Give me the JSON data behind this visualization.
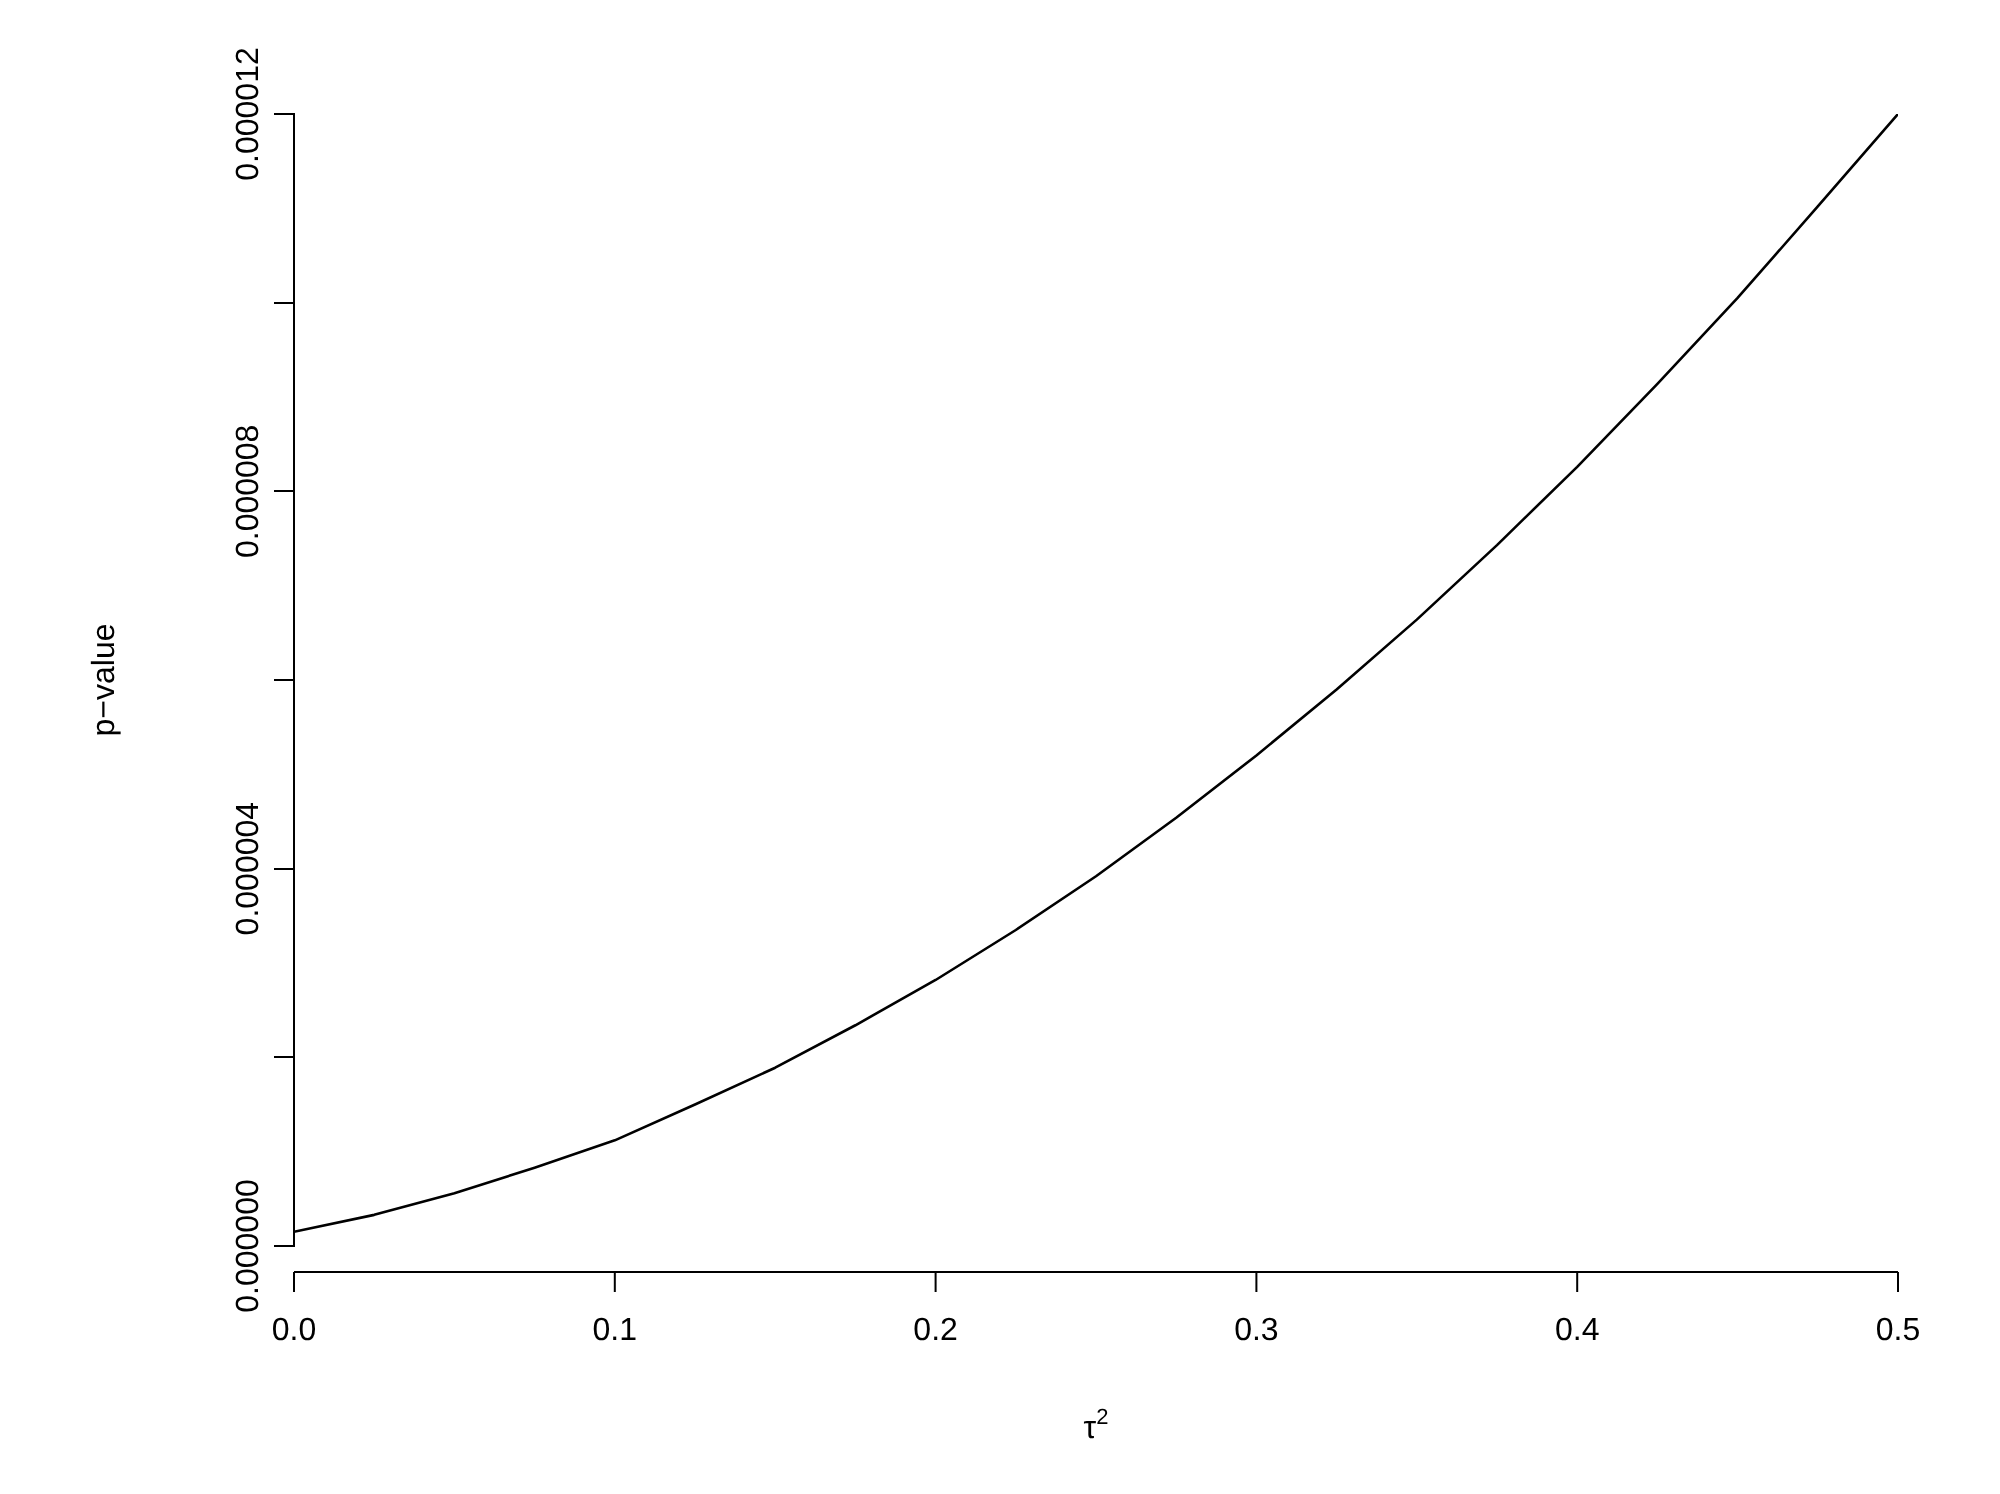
{
  "chart_data": {
    "type": "line",
    "xlabel": "τ$^{2}$",
    "ylabel": "p−value",
    "x": [
      0,
      0.025,
      0.05,
      0.075,
      0.1,
      0.125,
      0.15,
      0.175,
      0.2,
      0.225,
      0.25,
      0.275,
      0.3,
      0.325,
      0.35,
      0.375,
      0.4,
      0.425,
      0.45,
      0.475,
      0.5
    ],
    "series": [
      {
        "color": "#000000",
        "values": [
          1.5e-07,
          3.3e-07,
          5.6e-07,
          8.3e-07,
          1.12e-06,
          1.5e-06,
          1.89e-06,
          2.34e-06,
          2.82e-06,
          3.35e-06,
          3.92e-06,
          4.54e-06,
          5.2e-06,
          5.9e-06,
          6.64e-06,
          7.43e-06,
          8.26e-06,
          9.14e-06,
          1.005e-05,
          1.102e-05,
          1.2e-05
        ]
      }
    ],
    "xlim": [
      0,
      0.5
    ],
    "ylim": [
      0,
      1.2e-05
    ],
    "xticks": [
      {
        "value": 0,
        "label": "0.0"
      },
      {
        "value": 0.1,
        "label": "0.1"
      },
      {
        "value": 0.2,
        "label": "0.2"
      },
      {
        "value": 0.3,
        "label": "0.3"
      },
      {
        "value": 0.4,
        "label": "0.4"
      },
      {
        "value": 0.5,
        "label": "0.5"
      }
    ],
    "yticks": [
      {
        "value": 0,
        "label": "0.000000"
      },
      {
        "value": 2e-06,
        "label": null
      },
      {
        "value": 4e-06,
        "label": "0.000004"
      },
      {
        "value": 6e-06,
        "label": null
      },
      {
        "value": 8e-06,
        "label": "0.000008"
      },
      {
        "value": 1e-05,
        "label": null
      },
      {
        "value": 1.2e-05,
        "label": "0.000012"
      }
    ],
    "marker": "none",
    "line_style": "solid",
    "legend": false
  }
}
